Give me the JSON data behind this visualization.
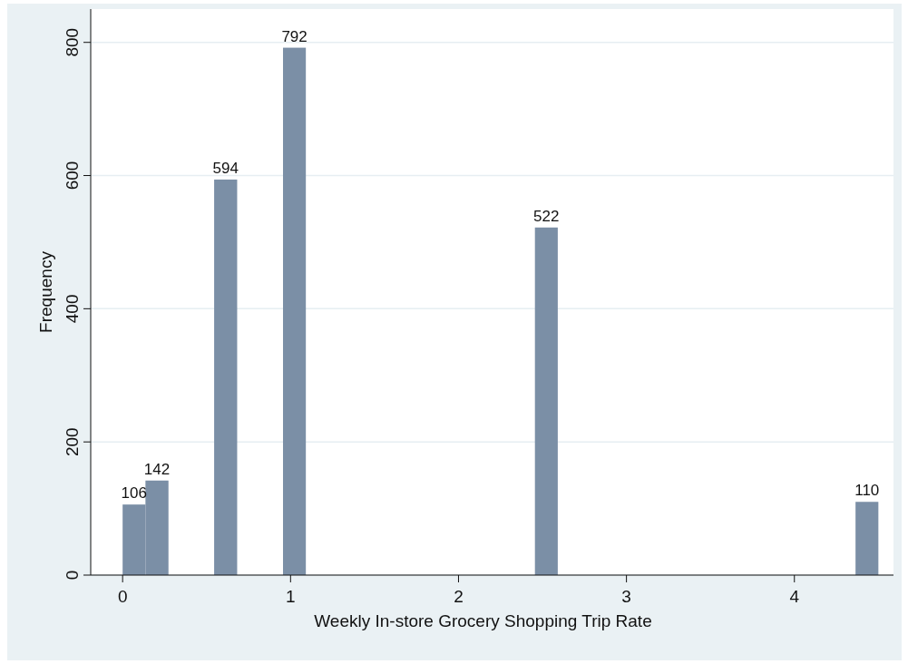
{
  "chart_data": {
    "type": "histogram",
    "xlabel": "Weekly In-store Grocery Shopping Trip Rate",
    "ylabel": "Frequency",
    "bins": [
      0,
      0.136,
      0.273,
      0.409,
      0.545,
      0.682,
      0.818,
      0.955,
      1.091,
      1.227,
      1.364,
      1.5,
      1.636,
      1.773,
      1.909,
      2.045,
      2.182,
      2.318,
      2.455,
      2.591,
      2.727,
      2.864,
      3,
      3.136,
      3.273,
      3.409,
      3.545,
      3.682,
      3.818,
      3.955,
      4.091,
      4.227,
      4.364,
      4.5
    ],
    "values": [
      106,
      142,
      0,
      0,
      594,
      0,
      0,
      792,
      0,
      0,
      0,
      0,
      0,
      0,
      0,
      0,
      0,
      0,
      522,
      0,
      0,
      0,
      0,
      0,
      0,
      0,
      0,
      0,
      0,
      0,
      0,
      0,
      110
    ],
    "value_labels": [
      "106",
      "142",
      null,
      null,
      "594",
      null,
      null,
      "792",
      null,
      null,
      null,
      null,
      null,
      null,
      null,
      null,
      null,
      null,
      "522",
      null,
      null,
      null,
      null,
      null,
      null,
      null,
      null,
      null,
      null,
      null,
      null,
      null,
      "110"
    ],
    "color": "#7b8fa6",
    "xlim": [
      -0.19,
      4.59
    ],
    "xticks": [
      0,
      1,
      2,
      3,
      4
    ],
    "ylim": [
      0,
      850
    ],
    "yticks": [
      0,
      200,
      400,
      600,
      800
    ],
    "grid": "y"
  }
}
